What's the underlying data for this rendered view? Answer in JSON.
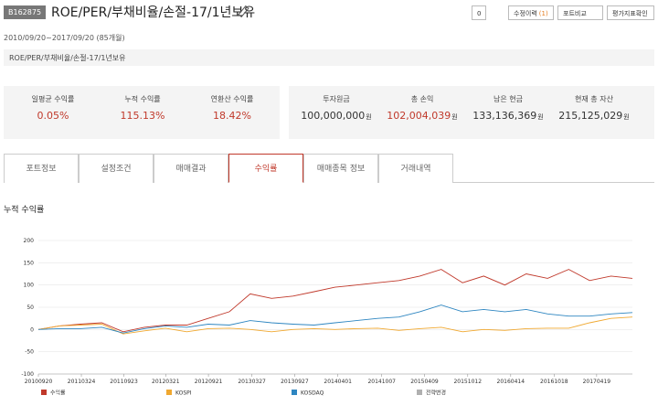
{
  "header": {
    "badge": "B162875",
    "title": "ROE/PER/부채비율/손절-17/1년보유",
    "like_count": "0",
    "history": "수정이력",
    "history_count": "(1)",
    "compare": "포트비교",
    "evaluate": "평가지표확인"
  },
  "period": "2010/09/20~2017/09/20 (85개월)",
  "portfolio_name": "ROE/PER/부채비율/손절-17/1년보유",
  "returns": [
    {
      "label": "일평균 수익률",
      "value": "0.05%"
    },
    {
      "label": "누적 수익률",
      "value": "115.13%"
    },
    {
      "label": "연환산 수익률",
      "value": "18.42%"
    }
  ],
  "assets": [
    {
      "label": "투자원금",
      "value": "100,000,000",
      "unit": "원"
    },
    {
      "label": "총 손익",
      "value": "102,004,039",
      "unit": "원"
    },
    {
      "label": "남은 현금",
      "value": "133,136,369",
      "unit": "원"
    },
    {
      "label": "현재 총 자산",
      "value": "215,125,029",
      "unit": "원"
    }
  ],
  "tabs": [
    "포트정보",
    "설정조건",
    "매매결과",
    "수익률",
    "매매종목 정보",
    "거래내역"
  ],
  "active_tab": 3,
  "chart_data": {
    "type": "line",
    "title": "누적 수익률",
    "x": [
      "20100920",
      "20101220",
      "20110320",
      "20110620",
      "20110920",
      "20111220",
      "20120320",
      "20120620",
      "20120920",
      "20121220",
      "20130320",
      "20130620",
      "20130920",
      "20131220",
      "20140320",
      "20140620",
      "20140920",
      "20141220",
      "20150320",
      "20150620",
      "20150920",
      "20151220",
      "20160320",
      "20160620",
      "20160920",
      "20161220",
      "20170320",
      "20170620",
      "20170920"
    ],
    "xlim": [
      "20100920",
      "20170920"
    ],
    "xticks": [
      "20100920",
      "20110324",
      "20110923",
      "20120321",
      "20120921",
      "20130327",
      "20130927",
      "20140401",
      "20141007",
      "20150409",
      "20151012",
      "20160414",
      "20161018",
      "20170419"
    ],
    "ylim": [
      -100,
      200
    ],
    "yticks": [
      -100,
      -50,
      0,
      50,
      100,
      150,
      200
    ],
    "grid": true,
    "series": [
      {
        "name": "수익률",
        "color": "#c0392b",
        "values": [
          0,
          8,
          12,
          15,
          -5,
          5,
          10,
          10,
          25,
          40,
          80,
          70,
          75,
          85,
          95,
          100,
          105,
          110,
          120,
          135,
          105,
          120,
          100,
          125,
          115,
          135,
          110,
          120,
          115
        ]
      },
      {
        "name": "KOSPI",
        "color": "#f0a830",
        "values": [
          0,
          8,
          10,
          12,
          -10,
          -3,
          3,
          -5,
          2,
          3,
          0,
          -5,
          0,
          2,
          0,
          2,
          3,
          -2,
          2,
          5,
          -5,
          0,
          -2,
          2,
          3,
          3,
          15,
          25,
          28
        ]
      },
      {
        "name": "KOSDAQ",
        "color": "#2e86c1",
        "values": [
          0,
          2,
          2,
          5,
          -8,
          2,
          8,
          5,
          12,
          10,
          20,
          15,
          12,
          10,
          15,
          20,
          25,
          28,
          40,
          55,
          40,
          45,
          40,
          45,
          35,
          30,
          30,
          35,
          38
        ]
      },
      {
        "name": "전략변경",
        "color": "#b0b0b0"
      }
    ]
  }
}
